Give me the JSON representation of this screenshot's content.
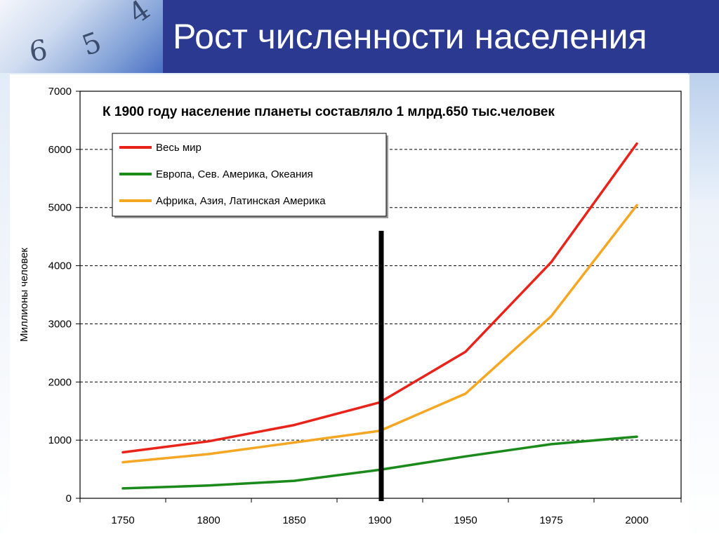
{
  "slide": {
    "title": "Рост численности населения",
    "colors": {
      "title_bg": "#2b3990",
      "title_text": "#ffffff"
    }
  },
  "decoration": {
    "clock_digits": [
      "6",
      "5",
      "4"
    ]
  },
  "chart_data": {
    "type": "line",
    "title": "К 1900 году население планеты составляло 1 млрд.650 тыс.человек",
    "xlabel": "",
    "ylabel": "Миллионы человек",
    "categories": [
      "1750",
      "1800",
      "1850",
      "1900",
      "1950",
      "1975",
      "2000"
    ],
    "ylim": [
      0,
      7000
    ],
    "yticks": [
      0,
      1000,
      2000,
      3000,
      4000,
      5000,
      6000,
      7000
    ],
    "grid": "horizontal-dashed",
    "legend_position": "top-left",
    "series": [
      {
        "name": "Весь мир",
        "color": "#e8231a",
        "values": [
          790,
          980,
          1260,
          1650,
          2520,
          4060,
          6100
        ]
      },
      {
        "name": "Европа, Сев. Америка, Океания",
        "color": "#1a8a1a",
        "values": [
          170,
          220,
          300,
          490,
          720,
          930,
          1060
        ]
      },
      {
        "name": "Африка, Азия, Латинская Америка",
        "color": "#f5a623",
        "values": [
          620,
          760,
          960,
          1160,
          1800,
          3130,
          5040
        ]
      }
    ],
    "annotation": {
      "type": "vertical-marker",
      "category": "1900",
      "from": 0,
      "to": 4600,
      "color": "#000000"
    }
  }
}
